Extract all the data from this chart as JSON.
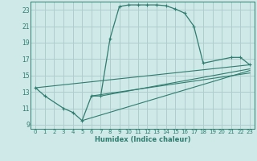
{
  "xlabel": "Humidex (Indice chaleur)",
  "bg_color": "#cfe8e8",
  "line_color": "#2e7d6e",
  "grid_color": "#b0cccc",
  "xlim": [
    -0.5,
    23.5
  ],
  "ylim": [
    8.5,
    24.0
  ],
  "xticks": [
    0,
    1,
    2,
    3,
    4,
    5,
    6,
    7,
    8,
    9,
    10,
    11,
    12,
    13,
    14,
    15,
    16,
    17,
    18,
    19,
    20,
    21,
    22,
    23
  ],
  "yticks": [
    9,
    11,
    13,
    15,
    17,
    19,
    21,
    23
  ],
  "main_curve": [
    [
      0,
      13.5
    ],
    [
      1,
      12.5
    ],
    [
      3,
      11.0
    ],
    [
      4,
      10.5
    ],
    [
      5,
      9.5
    ],
    [
      6,
      12.5
    ],
    [
      7,
      12.5
    ],
    [
      8,
      19.5
    ],
    [
      9,
      23.4
    ],
    [
      10,
      23.6
    ],
    [
      11,
      23.6
    ],
    [
      12,
      23.6
    ],
    [
      13,
      23.6
    ],
    [
      14,
      23.5
    ],
    [
      15,
      23.1
    ],
    [
      16,
      22.6
    ],
    [
      17,
      21.0
    ],
    [
      18,
      16.5
    ],
    [
      21,
      17.2
    ],
    [
      22,
      17.2
    ],
    [
      23,
      16.3
    ]
  ],
  "line2": [
    [
      0,
      13.5
    ],
    [
      23,
      16.3
    ]
  ],
  "line3": [
    [
      5,
      9.5
    ],
    [
      23,
      15.6
    ]
  ],
  "line4": [
    [
      6,
      12.5
    ],
    [
      23,
      15.3
    ]
  ],
  "line5": [
    [
      7,
      12.5
    ],
    [
      23,
      15.8
    ]
  ]
}
